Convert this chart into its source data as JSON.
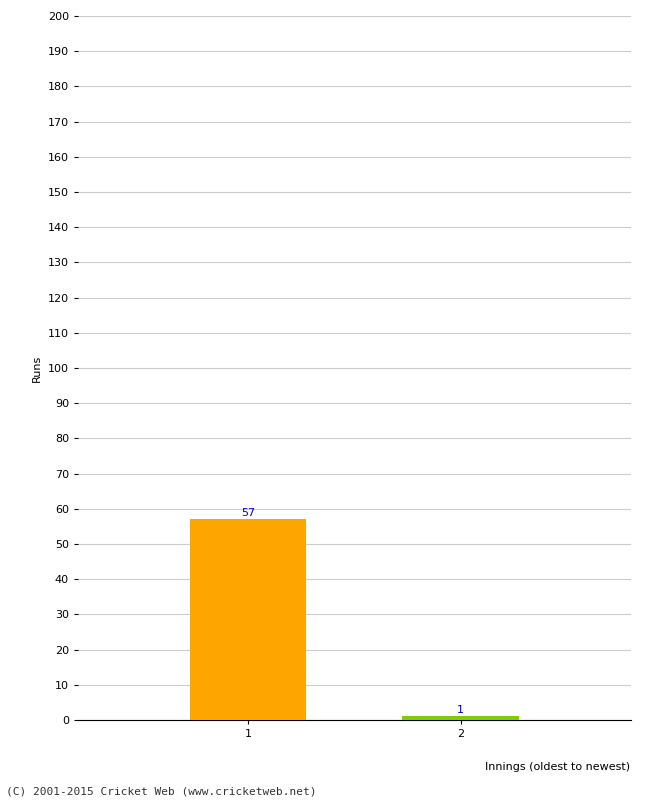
{
  "categories": [
    "1",
    "2"
  ],
  "values": [
    57,
    1
  ],
  "bar_colors": [
    "#FFA500",
    "#7FCC00"
  ],
  "ylabel": "Runs",
  "xlabel": "Innings (oldest to newest)",
  "ylim": [
    0,
    200
  ],
  "yticks": [
    0,
    10,
    20,
    30,
    40,
    50,
    60,
    70,
    80,
    90,
    100,
    110,
    120,
    130,
    140,
    150,
    160,
    170,
    180,
    190,
    200
  ],
  "footer": "(C) 2001-2015 Cricket Web (www.cricketweb.net)",
  "value_label_color": "#0000CC",
  "background_color": "#FFFFFF",
  "grid_color": "#CCCCCC",
  "bar_width": 0.55,
  "x_positions": [
    1,
    2
  ],
  "xlim": [
    0.2,
    2.8
  ]
}
